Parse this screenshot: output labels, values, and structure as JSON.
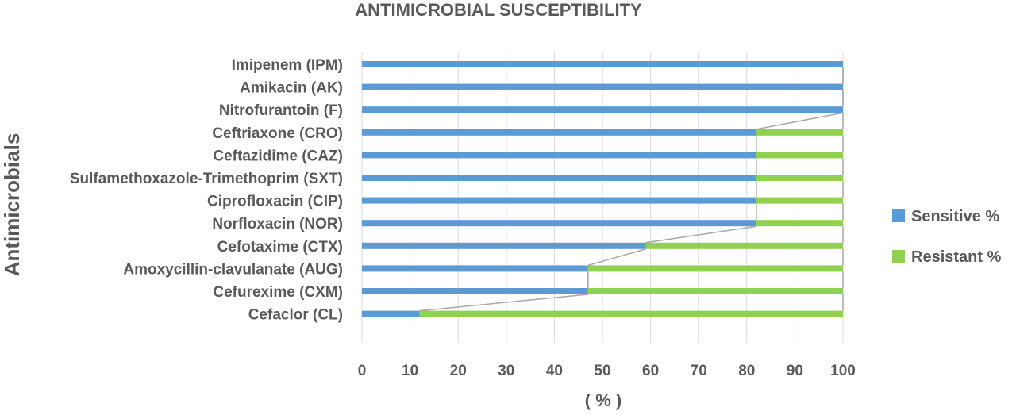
{
  "chart_data": {
    "type": "bar",
    "orientation": "horizontal",
    "stacked": true,
    "title": "ANTIMICROBIAL SUSCEPTIBILITY",
    "xlabel": "( % )",
    "ylabel": "Antimicrobials",
    "xlim": [
      0,
      100
    ],
    "xticks": [
      "0",
      "10",
      "20",
      "30",
      "40",
      "50",
      "60",
      "70",
      "80",
      "90",
      "100"
    ],
    "grid": true,
    "legend_position": "right",
    "series_lines": true,
    "categories": [
      "Imipenem (IPM)",
      "Amikacin (AK)",
      "Nitrofurantoin (F)",
      "Ceftriaxone (CRO)",
      "Ceftazidime (CAZ)",
      "Sulfamethoxazole-Trimethoprim (SXT)",
      "Ciprofloxacin (CIP)",
      "Norfloxacin (NOR)",
      "Cefotaxime (CTX)",
      "Amoxycillin-clavulanate (AUG)",
      "Cefureximе (CXM)",
      "Cefaclor (CL)"
    ],
    "series": [
      {
        "name": "Sensitive %",
        "color": "#5B9BD5",
        "values": [
          100,
          100,
          100,
          82,
          82,
          82,
          82,
          82,
          59,
          47,
          47,
          12
        ]
      },
      {
        "name": "Resistant %",
        "color": "#92D050",
        "values": [
          0,
          0,
          0,
          18,
          18,
          18,
          18,
          18,
          41,
          53,
          53,
          88
        ]
      }
    ]
  }
}
